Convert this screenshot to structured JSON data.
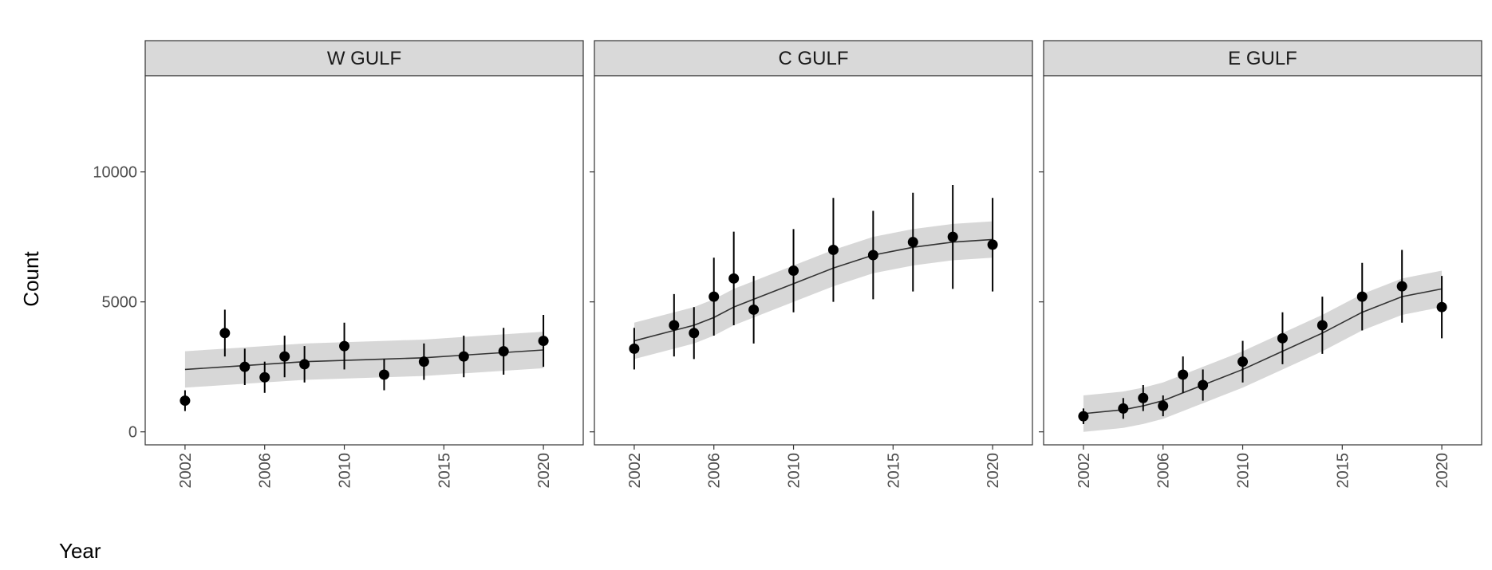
{
  "chart_data": [
    {
      "type": "scatter",
      "title": "W GULF",
      "ylabel": "Count",
      "xlabel": "Year",
      "x": [
        2002,
        2004,
        2005,
        2006,
        2007,
        2008,
        2010,
        2012,
        2014,
        2016,
        2018,
        2020
      ],
      "values": [
        1200,
        3800,
        2500,
        2100,
        2900,
        2600,
        3300,
        2200,
        2700,
        2900,
        3100,
        3500
      ],
      "errors": [
        400,
        900,
        700,
        600,
        800,
        700,
        900,
        600,
        700,
        800,
        900,
        1000
      ],
      "fit": [
        2400,
        2500,
        2550,
        2600,
        2650,
        2700,
        2750,
        2800,
        2850,
        2950,
        3050,
        3150
      ],
      "fit_lower": [
        1700,
        1800,
        1850,
        1900,
        1950,
        2000,
        2050,
        2100,
        2150,
        2250,
        2350,
        2450
      ],
      "fit_upper": [
        3100,
        3200,
        3250,
        3300,
        3350,
        3400,
        3450,
        3500,
        3550,
        3650,
        3750,
        3850
      ],
      "xlim": [
        2000,
        2022
      ],
      "ylim": [
        -500,
        13700
      ],
      "xticks": [
        2002,
        2006,
        2010,
        2015,
        2020
      ],
      "yticks": [
        0,
        5000,
        10000
      ]
    },
    {
      "type": "scatter",
      "title": "C GULF",
      "x": [
        2002,
        2004,
        2005,
        2006,
        2007,
        2008,
        2010,
        2012,
        2014,
        2016,
        2018,
        2020
      ],
      "values": [
        3200,
        4100,
        3800,
        5200,
        5900,
        4700,
        6200,
        7000,
        6800,
        7300,
        7500,
        7200
      ],
      "errors": [
        800,
        1200,
        1000,
        1500,
        1800,
        1300,
        1600,
        2000,
        1700,
        1900,
        2000,
        1800
      ],
      "fit": [
        3500,
        3900,
        4100,
        4400,
        4800,
        5100,
        5700,
        6300,
        6800,
        7100,
        7300,
        7400
      ],
      "fit_lower": [
        2800,
        3200,
        3400,
        3700,
        4100,
        4400,
        5000,
        5600,
        6100,
        6400,
        6600,
        6700
      ],
      "fit_upper": [
        4200,
        4600,
        4800,
        5100,
        5500,
        5800,
        6400,
        7000,
        7500,
        7800,
        8000,
        8100
      ],
      "xlim": [
        2000,
        2022
      ],
      "ylim": [
        -500,
        13700
      ],
      "xticks": [
        2002,
        2006,
        2010,
        2015,
        2020
      ],
      "yticks": [
        0,
        5000,
        10000
      ]
    },
    {
      "type": "scatter",
      "title": "E GULF",
      "x": [
        2002,
        2004,
        2005,
        2006,
        2007,
        2008,
        2010,
        2012,
        2014,
        2016,
        2018,
        2020
      ],
      "values": [
        600,
        900,
        1300,
        1000,
        2200,
        1800,
        2700,
        3600,
        4100,
        5200,
        5600,
        4800
      ],
      "errors": [
        300,
        400,
        500,
        400,
        700,
        600,
        800,
        1000,
        1100,
        1300,
        1400,
        1200
      ],
      "fit": [
        700,
        850,
        1000,
        1200,
        1500,
        1800,
        2400,
        3100,
        3800,
        4600,
        5200,
        5500
      ],
      "fit_lower": [
        0,
        150,
        300,
        500,
        800,
        1100,
        1700,
        2400,
        3100,
        3900,
        4500,
        4800
      ],
      "fit_upper": [
        1400,
        1550,
        1700,
        1900,
        2200,
        2500,
        3100,
        3800,
        4500,
        5300,
        5900,
        6200
      ],
      "xlim": [
        2000,
        2022
      ],
      "ylim": [
        -500,
        13700
      ],
      "xticks": [
        2002,
        2006,
        2010,
        2015,
        2020
      ],
      "yticks": [
        0,
        5000,
        10000
      ]
    }
  ]
}
